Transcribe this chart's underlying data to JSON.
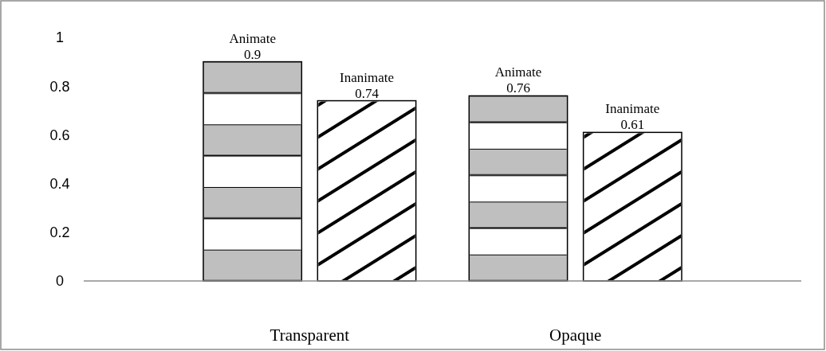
{
  "chart_data": {
    "type": "bar",
    "categories": [
      "Transparent",
      "Opaque"
    ],
    "series": [
      {
        "name": "Animate",
        "color": "#bfbfbf",
        "values": [
          0.9,
          0.76
        ]
      },
      {
        "name": "Inanimate",
        "color": "#ffffff",
        "values": [
          0.74,
          0.61
        ]
      }
    ],
    "ylim": [
      0,
      1
    ],
    "yticks": [
      0,
      0.2,
      0.4,
      0.6,
      0.8,
      1
    ],
    "grid": false,
    "data_labels": true
  }
}
